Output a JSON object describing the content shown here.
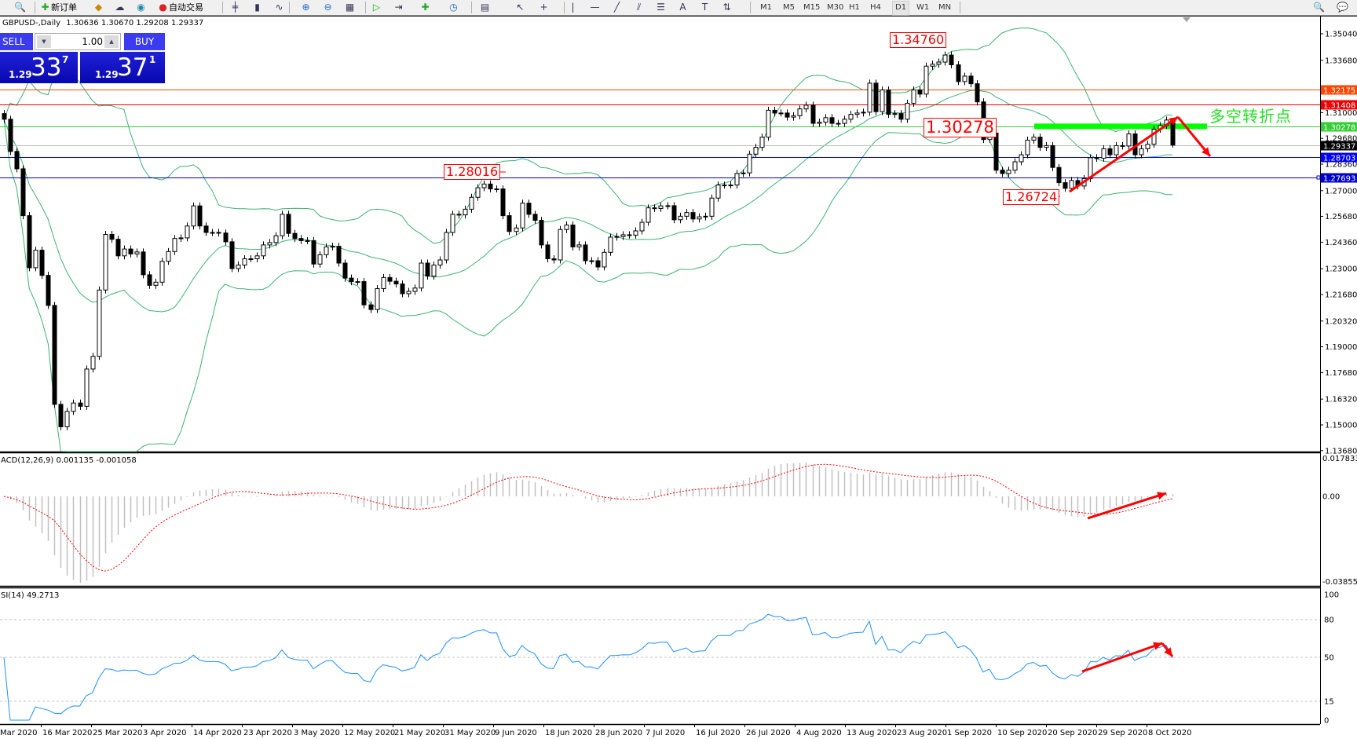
{
  "toolbar": {
    "items": [
      {
        "icon": "zoom-chart-icon",
        "label": ""
      },
      {
        "icon": "new-order-icon",
        "label": "新订单"
      },
      {
        "icon": "market-watch-icon",
        "label": ""
      },
      {
        "icon": "data-window-icon",
        "label": ""
      },
      {
        "icon": "signal-icon",
        "label": ""
      },
      {
        "icon": "auto-trading-icon",
        "label": "自动交易"
      }
    ],
    "chart_tools": [
      "bar-chart-icon",
      "candlestick-icon",
      "line-chart-icon",
      "zoom-in-icon",
      "zoom-out-icon",
      "tile-windows-icon",
      "auto-scroll-icon",
      "chart-shift-icon",
      "indicators-icon",
      "periods-icon",
      "templates-icon",
      "cursor-icon",
      "crosshair-icon",
      "vertical-line-icon",
      "horizontal-line-icon",
      "trendline-icon",
      "equidistant-channel-icon",
      "fibonacci-icon",
      "text-icon",
      "text-label-icon",
      "arrows-icon"
    ],
    "timeframes": [
      "M1",
      "M5",
      "M15",
      "M30",
      "H1",
      "H4",
      "D1",
      "W1",
      "MN"
    ],
    "active_timeframe": "D1",
    "right_icons": [
      "search-icon",
      "community-icon"
    ]
  },
  "chart_header": {
    "symbol": "GBPUSD-,Daily",
    "ohlc": "1.30636 1.30670 1.29208 1.29337"
  },
  "trade_panel": {
    "sell_label": "SELL",
    "buy_label": "BUY",
    "lot": "1.00",
    "sell_price": {
      "prefix": "1.29",
      "big": "33",
      "sup": "7"
    },
    "buy_price": {
      "prefix": "1.29",
      "big": "37",
      "sup": "1"
    }
  },
  "annotation_text": "多空转折点",
  "colors": {
    "bollinger": "#3cb371",
    "rsi": "#1e90ff",
    "macd_hist": "#c0c0c0",
    "macd_signal": "#ff0000",
    "arrows": "#ff0000",
    "label_green": "#22e022"
  },
  "chart_data": [
    {
      "type": "candlestick",
      "title": "GBPUSD-,Daily",
      "indicators": [
        "Bollinger Bands (20, 2)"
      ],
      "ylim": [
        1.1368,
        1.3504
      ],
      "y_ticks": [
        "1.35040",
        "1.33680",
        "1.31000",
        "1.29680",
        "1.28360",
        "1.27000",
        "1.25680",
        "1.24360",
        "1.23000",
        "1.21680",
        "1.20320",
        "1.19000",
        "1.17680",
        "1.16320",
        "1.15000",
        "1.13680"
      ],
      "x_ticks": [
        "Mar 2020",
        "16 Mar 2020",
        "25 Mar 2020",
        "3 Apr 2020",
        "14 Apr 2020",
        "23 Apr 2020",
        "3 May 2020",
        "12 May 2020",
        "21 May 2020",
        "31 May 2020",
        "9 Jun 2020",
        "18 Jun 2020",
        "28 Jun 2020",
        "7 Jul 2020",
        "16 Jul 2020",
        "26 Jul 2020",
        "4 Aug 2020",
        "13 Aug 2020",
        "23 Aug 2020",
        "1 Sep 2020",
        "10 Sep 2020",
        "20 Sep 2020",
        "29 Sep 2020",
        "8 Oct 2020"
      ],
      "first_open": 1.3095,
      "last_bar": {
        "open": 1.30636,
        "high": 1.3067,
        "low": 1.29208,
        "close": 1.29337
      },
      "close": [
        1.3066,
        1.2901,
        1.2812,
        1.2572,
        1.2305,
        1.2395,
        1.2266,
        1.2112,
        1.1605,
        1.149,
        1.1569,
        1.1612,
        1.1595,
        1.1786,
        1.1851,
        1.2191,
        1.2476,
        1.2451,
        1.2366,
        1.2401,
        1.2376,
        1.2386,
        1.2269,
        1.2215,
        1.2231,
        1.2338,
        1.2388,
        1.2455,
        1.2458,
        1.2519,
        1.2622,
        1.2519,
        1.2486,
        1.2486,
        1.2483,
        1.2438,
        1.2301,
        1.2319,
        1.2351,
        1.2351,
        1.2366,
        1.2422,
        1.2434,
        1.2469,
        1.2579,
        1.2481,
        1.2455,
        1.2444,
        1.2444,
        1.2324,
        1.2372,
        1.2412,
        1.2415,
        1.2329,
        1.2252,
        1.2234,
        1.2234,
        1.2115,
        1.2091,
        1.2198,
        1.2255,
        1.2236,
        1.2222,
        1.2172,
        1.2184,
        1.2201,
        1.2329,
        1.2262,
        1.2319,
        1.2345,
        1.2486,
        1.2579,
        1.2576,
        1.2605,
        1.2666,
        1.2715,
        1.2734,
        1.2709,
        1.2709,
        1.2572,
        1.2491,
        1.2509,
        1.2636,
        1.2579,
        1.2548,
        1.2422,
        1.2351,
        1.2345,
        1.2501,
        1.2524,
        1.2412,
        1.2422,
        1.2341,
        1.2341,
        1.2309,
        1.2384,
        1.2462,
        1.2465,
        1.2474,
        1.2472,
        1.2494,
        1.2538,
        1.2612,
        1.2609,
        1.2622,
        1.2623,
        1.2551,
        1.2569,
        1.2588,
        1.2555,
        1.2566,
        1.2569,
        1.2662,
        1.2729,
        1.2729,
        1.2729,
        1.2788,
        1.2791,
        1.2887,
        1.2922,
        1.2974,
        1.3112,
        1.3098,
        1.3098,
        1.3077,
        1.3084,
        1.3119,
        1.3138,
        1.3045,
        1.3051,
        1.3074,
        1.3045,
        1.3045,
        1.3066,
        1.3091,
        1.3098,
        1.3102,
        1.3251,
        1.3105,
        1.3216,
        1.3091,
        1.3095,
        1.3066,
        1.3148,
        1.3216,
        1.3195,
        1.3338,
        1.3348,
        1.3359,
        1.3395,
        1.3345,
        1.3259,
        1.3287,
        1.3248,
        1.3155,
        1.2962,
        1.2995,
        1.2805,
        1.2788,
        1.2805,
        1.2848,
        1.2884,
        1.2959,
        1.2974,
        1.2922,
        1.2931,
        1.2819,
        1.2741,
        1.2712,
        1.2752,
        1.2724,
        1.2762,
        1.2869,
        1.2866,
        1.2915,
        1.2884,
        1.2931,
        1.2929,
        1.2991,
        1.2884,
        1.2915,
        1.2938,
        1.3015,
        1.3034,
        1.3062,
        1.29337
      ],
      "levels": [
        {
          "price": 1.32175,
          "label": "1.32175",
          "color": "#ff4500"
        },
        {
          "price": 1.31408,
          "label": "1.31408",
          "color": "#ee0000"
        },
        {
          "price": 1.30278,
          "label": "1.30278",
          "color": "#32cd32"
        },
        {
          "price": 1.29337,
          "label": "1.29337",
          "color": "#c0c0c0",
          "label_bg": "#000000"
        },
        {
          "price": 1.28703,
          "label": "1.28703",
          "color": "#0000ff"
        },
        {
          "price": 1.27693,
          "label": "1.27693",
          "color": "#0000cc"
        }
      ],
      "price_labels": [
        {
          "text": "1.34760",
          "price": 1.3476
        },
        {
          "text": "1.30278",
          "price": 1.30278
        },
        {
          "text": "1.28016",
          "price": 1.28016
        },
        {
          "text": "1.26724",
          "price": 1.26724
        }
      ],
      "resistance_zone": {
        "price": 1.30278,
        "color": "#00ff00"
      }
    },
    {
      "type": "bar+line",
      "title": "ACD(12,26,9) 0.001135 -0.001058",
      "indicator": "MACD(12,26,9)",
      "main": 0.001135,
      "signal": -0.001058,
      "y_ticks": [
        "0.017833",
        "0.00",
        "-0.038559"
      ],
      "ylim": [
        -0.038559,
        0.017833
      ]
    },
    {
      "type": "line",
      "title": "SI(14) 49.2713",
      "indicator": "RSI(14)",
      "value": 49.2713,
      "levels": [
        80,
        50,
        15
      ],
      "y_ticks": [
        "100",
        "80",
        "50",
        "15",
        "0"
      ],
      "ylim": [
        0,
        100
      ]
    }
  ]
}
